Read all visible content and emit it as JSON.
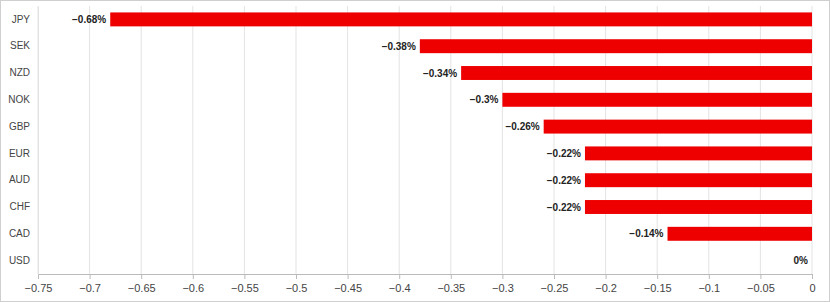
{
  "chart_data": {
    "type": "bar",
    "orientation": "horizontal",
    "categories": [
      "JPY",
      "SEK",
      "NZD",
      "NOK",
      "GBP",
      "EUR",
      "AUD",
      "CHF",
      "CAD",
      "USD"
    ],
    "values": [
      -0.68,
      -0.38,
      -0.34,
      -0.3,
      -0.26,
      -0.22,
      -0.22,
      -0.22,
      -0.14,
      0
    ],
    "value_labels": [
      "−0.68%",
      "−0.38%",
      "−0.34%",
      "−0.3%",
      "−0.26%",
      "−0.22%",
      "−0.22%",
      "−0.22%",
      "−0.14%",
      "0%"
    ],
    "color": "#ee0000",
    "data_labels": true,
    "grid": true,
    "xlim": [
      -0.75,
      0
    ],
    "xticks": [
      {
        "value": -0.75,
        "label": "−0.75"
      },
      {
        "value": -0.7,
        "label": "−0.7"
      },
      {
        "value": -0.65,
        "label": "−0.65"
      },
      {
        "value": -0.6,
        "label": "−0.6"
      },
      {
        "value": -0.55,
        "label": "−0.55"
      },
      {
        "value": -0.5,
        "label": "−0.5"
      },
      {
        "value": -0.45,
        "label": "−0.45"
      },
      {
        "value": -0.4,
        "label": "−0.4"
      },
      {
        "value": -0.35,
        "label": "−0.35"
      },
      {
        "value": -0.3,
        "label": "−0.3"
      },
      {
        "value": -0.25,
        "label": "−0.25"
      },
      {
        "value": -0.2,
        "label": "−0.2"
      },
      {
        "value": -0.15,
        "label": "−0.15"
      },
      {
        "value": -0.1,
        "label": "−0.1"
      },
      {
        "value": -0.05,
        "label": "−0.05"
      },
      0
    ]
  }
}
